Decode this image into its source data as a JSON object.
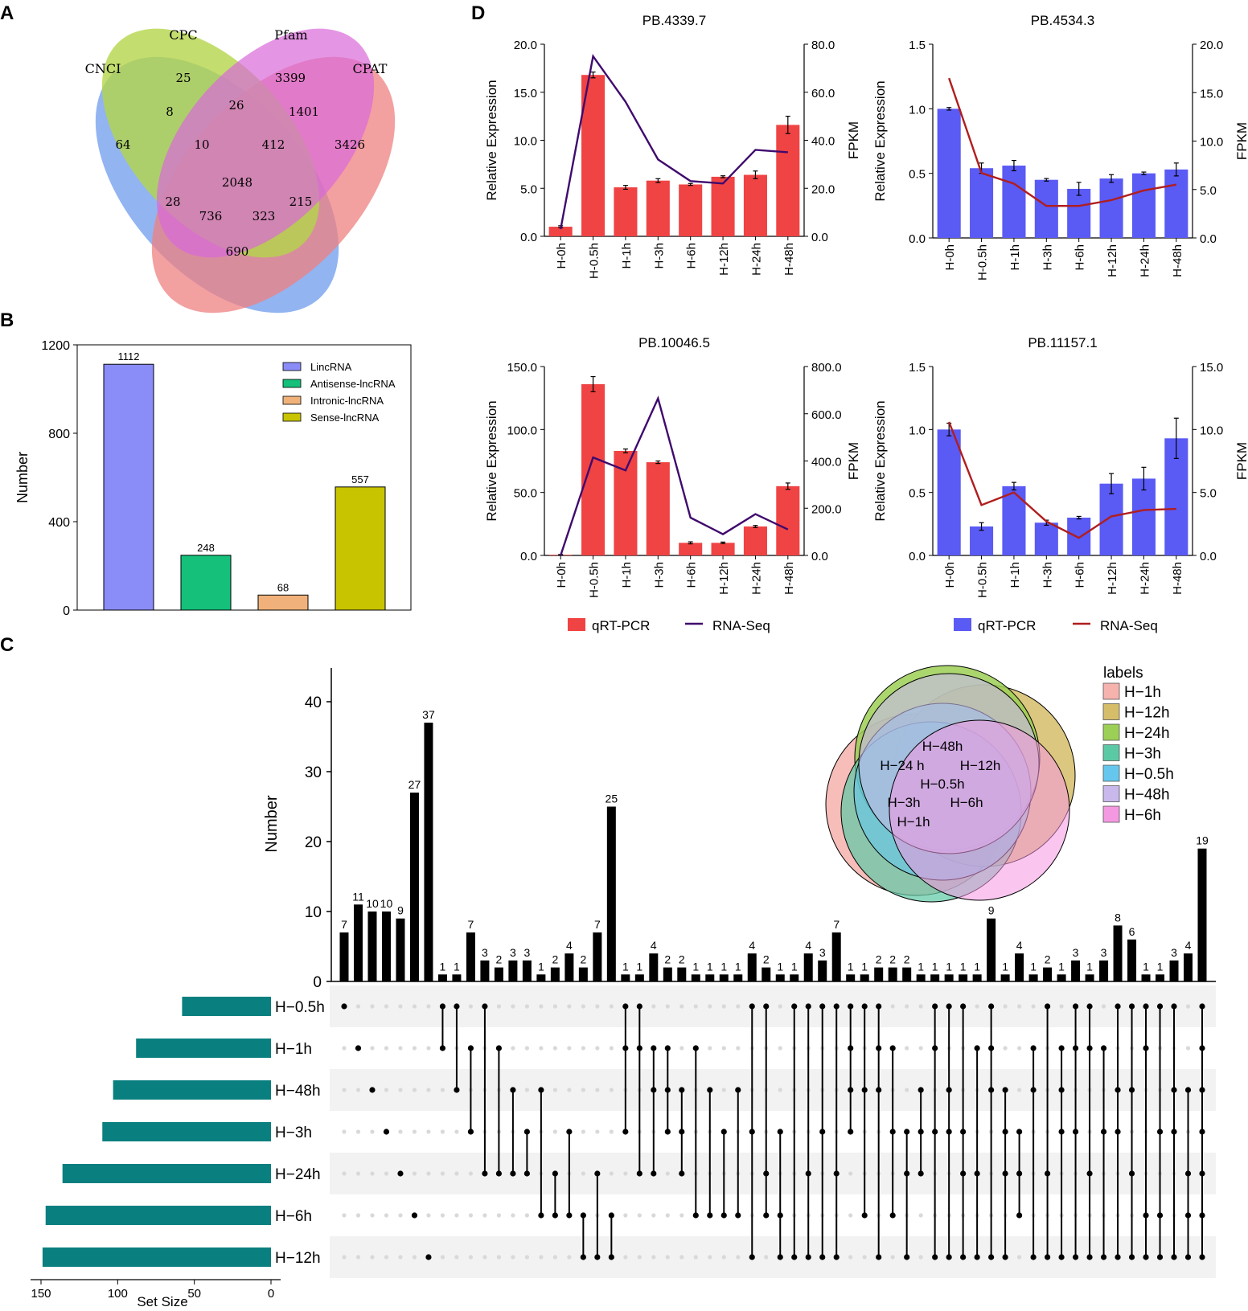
{
  "panels": {
    "A": "A",
    "B": "B",
    "C": "C",
    "D": "D"
  },
  "colors": {
    "red": "#f04343",
    "blue": "#5a5af5",
    "purple_line": "#3f0a6e",
    "darkred_line": "#b01e1e",
    "teal": "#0a7f7f",
    "venn_blue": "#7fa7ee",
    "venn_green": "#b4d64a",
    "venn_pink": "#d86ad8",
    "venn_red": "#ef8080"
  },
  "chart_data": [
    {
      "type": "venn",
      "sets": [
        "CNCI",
        "CPC",
        "Pfam",
        "CPAT"
      ],
      "regions": [
        {
          "v": 64
        },
        {
          "v": 25
        },
        {
          "v": 3399
        },
        {
          "v": 3426
        },
        {
          "v": 8
        },
        {
          "v": 26
        },
        {
          "v": 1401
        },
        {
          "v": 10
        },
        {
          "v": 412
        },
        {
          "v": 2048
        },
        {
          "v": 28
        },
        {
          "v": 215
        },
        {
          "v": 736
        },
        {
          "v": 323
        },
        {
          "v": 690
        }
      ]
    },
    {
      "type": "bar",
      "ylabel": "Number",
      "yticks": [
        0,
        400,
        800,
        1200
      ],
      "ylim": [
        0,
        1200
      ],
      "categories": [
        "LincRNA",
        "Antisense-lncRNA",
        "Intronic-lncRNA",
        "Sense-lncRNA"
      ],
      "values": [
        1112,
        248,
        68,
        557
      ],
      "legend": [
        "LincRNA",
        "Antisense-lncRNA",
        "Intronic-lncRNA",
        "Sense-lncRNA"
      ]
    },
    {
      "type": "upset",
      "ylabel": "Number",
      "xlabel": "Set Size",
      "yticks": [
        0,
        10,
        20,
        30,
        40
      ],
      "ylim": [
        0,
        42
      ],
      "setsize_ticks": [
        150,
        100,
        50,
        0
      ],
      "sets": [
        {
          "name": "H−0.5h",
          "size": 58
        },
        {
          "name": "H−1h",
          "size": 88
        },
        {
          "name": "H−48h",
          "size": 103
        },
        {
          "name": "H−3h",
          "size": 110
        },
        {
          "name": "H−24h",
          "size": 136
        },
        {
          "name": "H−6h",
          "size": 147
        },
        {
          "name": "H−12h",
          "size": 149
        }
      ],
      "values": [
        7,
        11,
        10,
        10,
        9,
        27,
        37,
        1,
        1,
        7,
        3,
        2,
        3,
        3,
        1,
        2,
        4,
        2,
        7,
        25,
        1,
        1,
        4,
        2,
        2,
        1,
        1,
        1,
        1,
        4,
        2,
        1,
        1,
        4,
        3,
        7,
        1,
        1,
        2,
        2,
        2,
        1,
        1,
        1,
        1,
        1,
        9,
        1,
        4,
        1,
        2,
        1,
        3,
        1,
        3,
        8,
        6,
        1,
        1,
        3,
        4,
        19
      ],
      "matrix": [
        [
          0
        ],
        [
          1
        ],
        [
          2
        ],
        [
          3
        ],
        [
          4
        ],
        [
          5
        ],
        [
          6
        ],
        [
          0,
          1
        ],
        [
          0,
          2
        ],
        [
          1,
          3
        ],
        [
          0,
          4
        ],
        [
          1,
          4
        ],
        [
          2,
          4
        ],
        [
          3,
          4
        ],
        [
          2,
          5
        ],
        [
          4,
          5
        ],
        [
          3,
          5
        ],
        [
          5,
          6
        ],
        [
          4,
          6
        ],
        [
          5,
          6
        ],
        [
          0,
          1,
          3
        ],
        [
          0,
          1,
          4
        ],
        [
          1,
          2,
          4
        ],
        [
          1,
          2,
          3
        ],
        [
          2,
          3,
          4
        ],
        [
          1,
          5
        ],
        [
          2,
          5
        ],
        [
          3,
          5
        ],
        [
          2,
          5
        ],
        [
          0,
          3,
          6
        ],
        [
          0,
          4,
          5
        ],
        [
          3,
          5,
          6
        ],
        [
          0,
          6
        ],
        [
          0,
          4,
          6
        ],
        [
          0,
          3,
          6
        ],
        [
          0,
          4,
          6
        ],
        [
          0,
          1,
          2,
          3
        ],
        [
          0,
          2,
          5
        ],
        [
          0,
          1,
          2,
          6
        ],
        [
          1,
          3,
          5
        ],
        [
          3,
          4,
          6
        ],
        [
          2,
          3,
          4
        ],
        [
          0,
          1,
          3,
          6
        ],
        [
          0,
          2,
          3,
          6
        ],
        [
          0,
          3,
          4,
          6
        ],
        [
          1,
          4,
          6
        ],
        [
          0,
          1,
          2,
          6
        ],
        [
          2,
          3,
          4,
          6
        ],
        [
          3,
          4,
          5
        ],
        [
          1,
          2,
          6
        ],
        [
          0,
          4,
          6
        ],
        [
          1,
          2,
          3,
          6
        ],
        [
          0,
          1,
          3,
          6
        ],
        [
          0,
          1,
          4,
          6
        ],
        [
          1,
          3,
          6
        ],
        [
          0,
          2,
          3,
          6
        ],
        [
          0,
          2,
          4,
          6
        ],
        [
          0,
          1,
          5,
          6
        ],
        [
          0,
          3,
          5,
          6
        ],
        [
          0,
          2,
          3,
          6
        ],
        [
          2,
          4,
          5,
          6
        ],
        [
          0,
          1,
          2,
          3,
          4,
          5,
          6
        ]
      ],
      "venn_labels": [
        "H−48h",
        "H−24 h",
        "H−12h",
        "H−0.5h",
        "H−3h",
        "H−6h",
        "H−1h"
      ],
      "legend_title": "labels",
      "legend": [
        {
          "name": "H−1h",
          "color": "#f6b2ad"
        },
        {
          "name": "H−12h",
          "color": "#d6bd6a"
        },
        {
          "name": "H−24h",
          "color": "#9ccf55"
        },
        {
          "name": "H−3h",
          "color": "#5cc9a5"
        },
        {
          "name": "H−0.5h",
          "color": "#65c7ee"
        },
        {
          "name": "H−48h",
          "color": "#c9b8ec"
        },
        {
          "name": "H−6h",
          "color": "#f598e2"
        }
      ]
    },
    {
      "type": "bar+line",
      "title": "PB.4339.7",
      "ylabel": "Relative Expression",
      "y2label": "FPKM",
      "yticks": [
        "0.0",
        "5.0",
        "10.0",
        "15.0",
        "20.0"
      ],
      "ylim": [
        0,
        20
      ],
      "y2ticks": [
        "0.0",
        "20.0",
        "40.0",
        "60.0",
        "80.0"
      ],
      "y2lim": [
        0,
        80
      ],
      "categories": [
        "H-0h",
        "H-0.5h",
        "H-1h",
        "H-3h",
        "H-6h",
        "H-12h",
        "H-24h",
        "H-48h"
      ],
      "bars": [
        1.0,
        16.8,
        5.1,
        5.8,
        5.4,
        6.2,
        6.4,
        11.6
      ],
      "errors": [
        0.1,
        0.3,
        0.2,
        0.2,
        0.1,
        0.1,
        0.4,
        0.9
      ],
      "line": [
        3,
        75,
        56,
        32,
        23,
        22,
        36,
        35
      ],
      "color": "#f04343",
      "line_color": "#3f0a6e"
    },
    {
      "type": "bar+line",
      "title": "PB.4534.3",
      "ylabel": "Relative Expression",
      "y2label": "FPKM",
      "yticks": [
        "0.0",
        "0.5",
        "1.0",
        "1.5"
      ],
      "ylim": [
        0,
        1.5
      ],
      "y2ticks": [
        "0.0",
        "5.0",
        "10.0",
        "15.0",
        "20.0"
      ],
      "y2lim": [
        0,
        20
      ],
      "categories": [
        "H-0h",
        "H-0.5h",
        "H-1h",
        "H-3h",
        "H-6h",
        "H-12h",
        "H-24h",
        "H-48h"
      ],
      "bars": [
        1.0,
        0.54,
        0.56,
        0.45,
        0.38,
        0.46,
        0.5,
        0.53
      ],
      "errors": [
        0.01,
        0.04,
        0.04,
        0.01,
        0.05,
        0.03,
        0.01,
        0.05
      ],
      "line": [
        16.5,
        6.7,
        5.6,
        3.3,
        3.3,
        3.9,
        4.9,
        5.5
      ],
      "color": "#5a5af5",
      "line_color": "#b01e1e"
    },
    {
      "type": "bar+line",
      "title": "PB.10046.5",
      "ylabel": "Relative Expression",
      "y2label": "FPKM",
      "yticks": [
        "0.0",
        "50.0",
        "100.0",
        "150.0"
      ],
      "ylim": [
        0,
        150
      ],
      "y2ticks": [
        "0.0",
        "200.0",
        "400.0",
        "600.0",
        "800.0"
      ],
      "y2lim": [
        0,
        800
      ],
      "categories": [
        "H-0h",
        "H-0.5h",
        "H-1h",
        "H-3h",
        "H-6h",
        "H-12h",
        "H-24h",
        "H-48h"
      ],
      "bars": [
        0.5,
        136,
        83,
        74,
        10,
        10,
        23,
        55
      ],
      "errors": [
        0.2,
        6,
        1.5,
        1,
        0.8,
        0.6,
        0.8,
        2.5
      ],
      "line": [
        0,
        415,
        360,
        665,
        160,
        90,
        175,
        110
      ],
      "color": "#f04343",
      "line_color": "#3f0a6e"
    },
    {
      "type": "bar+line",
      "title": "PB.11157.1",
      "ylabel": "Relative Expression",
      "y2label": "FPKM",
      "yticks": [
        "0.0",
        "0.5",
        "1.0",
        "1.5"
      ],
      "ylim": [
        0,
        1.5
      ],
      "y2ticks": [
        "0.0",
        "5.0",
        "10.0",
        "15.0"
      ],
      "y2lim": [
        0,
        15
      ],
      "categories": [
        "H-0h",
        "H-0.5h",
        "H-1h",
        "H-3h",
        "H-6h",
        "H-12h",
        "H-24h",
        "H-48h"
      ],
      "bars": [
        1.0,
        0.23,
        0.55,
        0.26,
        0.3,
        0.57,
        0.61,
        0.93
      ],
      "errors": [
        0.05,
        0.03,
        0.03,
        0.02,
        0.01,
        0.08,
        0.09,
        0.16
      ],
      "line": [
        10.6,
        4.0,
        5.0,
        2.7,
        1.4,
        3.1,
        3.6,
        3.7
      ],
      "color": "#5a5af5",
      "line_color": "#b01e1e"
    }
  ],
  "legend_d_left": {
    "bar": "qRT-PCR",
    "line": "RNA-Seq"
  },
  "legend_d_right": {
    "bar": "qRT-PCR",
    "line": "RNA-Seq"
  }
}
